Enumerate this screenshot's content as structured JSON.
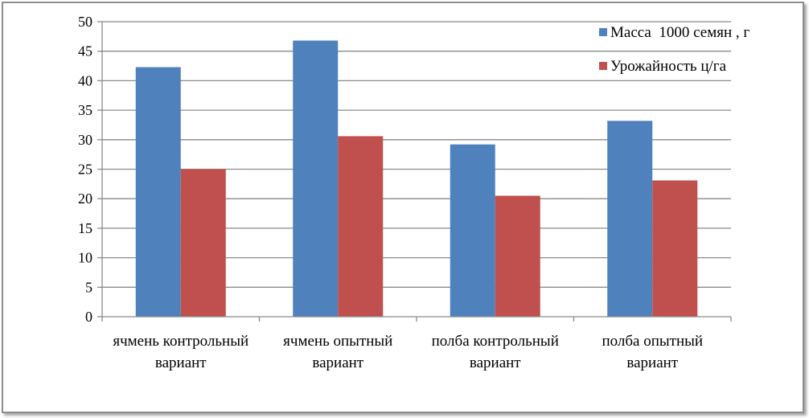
{
  "chart_data": {
    "type": "bar",
    "title": "",
    "xlabel": "",
    "ylabel": "",
    "categories": [
      [
        "ячмень контрольный",
        "вариант"
      ],
      [
        "ячмень опытный",
        "вариант"
      ],
      [
        "полба контрольный",
        "вариант"
      ],
      [
        "полба опытный",
        "вариант"
      ]
    ],
    "series": [
      {
        "name": "Масса  1000 семян , г",
        "color": "#4f81bd",
        "values": [
          42.3,
          46.8,
          29.2,
          33.2
        ]
      },
      {
        "name": "Урожайность ц/га",
        "color": "#c0504d",
        "values": [
          25.0,
          30.6,
          20.5,
          23.1
        ]
      }
    ],
    "ylim": [
      0,
      50
    ],
    "yticks": [
      0,
      5,
      10,
      15,
      20,
      25,
      30,
      35,
      40,
      45,
      50
    ],
    "grid": true,
    "legend_position": "top-right"
  }
}
